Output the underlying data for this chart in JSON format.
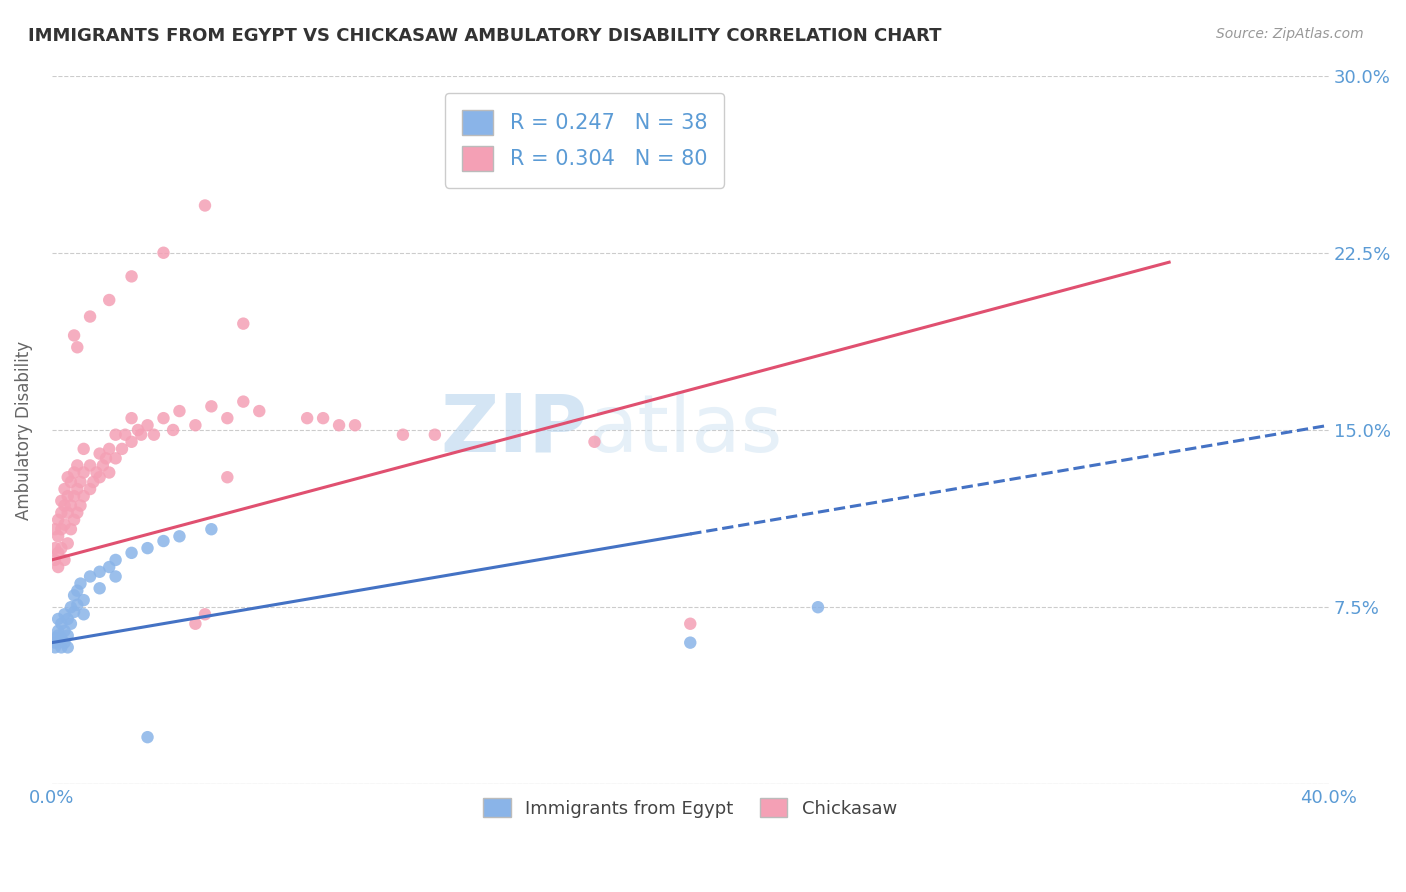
{
  "title": "IMMIGRANTS FROM EGYPT VS CHICKASAW AMBULATORY DISABILITY CORRELATION CHART",
  "source": "Source: ZipAtlas.com",
  "ylabel": "Ambulatory Disability",
  "xlim": [
    0.0,
    0.4
  ],
  "ylim": [
    0.0,
    0.3
  ],
  "xticks": [
    0.0,
    0.05,
    0.1,
    0.15,
    0.2,
    0.25,
    0.3,
    0.35,
    0.4
  ],
  "xticklabels": [
    "0.0%",
    "",
    "",
    "",
    "",
    "",
    "",
    "",
    "40.0%"
  ],
  "yticks": [
    0.0,
    0.075,
    0.15,
    0.225,
    0.3
  ],
  "yticklabels_right": [
    "",
    "7.5%",
    "15.0%",
    "22.5%",
    "30.0%"
  ],
  "legend_labels": [
    "Immigrants from Egypt",
    "Chickasaw"
  ],
  "legend_R": [
    0.247,
    0.304
  ],
  "legend_N": [
    38,
    80
  ],
  "blue_color": "#8ab4e8",
  "pink_color": "#f4a0b5",
  "trend_blue_color": "#4472c4",
  "trend_pink_color": "#e05070",
  "grid_color": "#cccccc",
  "axis_color": "#5b9bd5",
  "title_color": "#333333",
  "blue_trend_solid_end": 0.2,
  "blue_trend_dashed_start": 0.2,
  "blue_trend_intercept": 0.06,
  "blue_trend_slope": 0.23,
  "pink_trend_intercept": 0.095,
  "pink_trend_slope": 0.36,
  "blue_dots": [
    [
      0.001,
      0.062
    ],
    [
      0.001,
      0.06
    ],
    [
      0.001,
      0.058
    ],
    [
      0.002,
      0.065
    ],
    [
      0.002,
      0.063
    ],
    [
      0.002,
      0.07
    ],
    [
      0.003,
      0.068
    ],
    [
      0.003,
      0.062
    ],
    [
      0.003,
      0.058
    ],
    [
      0.004,
      0.072
    ],
    [
      0.004,
      0.065
    ],
    [
      0.004,
      0.06
    ],
    [
      0.005,
      0.07
    ],
    [
      0.005,
      0.063
    ],
    [
      0.005,
      0.058
    ],
    [
      0.006,
      0.075
    ],
    [
      0.006,
      0.068
    ],
    [
      0.007,
      0.08
    ],
    [
      0.007,
      0.073
    ],
    [
      0.008,
      0.082
    ],
    [
      0.008,
      0.076
    ],
    [
      0.009,
      0.085
    ],
    [
      0.01,
      0.078
    ],
    [
      0.01,
      0.072
    ],
    [
      0.012,
      0.088
    ],
    [
      0.015,
      0.09
    ],
    [
      0.015,
      0.083
    ],
    [
      0.018,
      0.092
    ],
    [
      0.02,
      0.095
    ],
    [
      0.02,
      0.088
    ],
    [
      0.025,
      0.098
    ],
    [
      0.03,
      0.1
    ],
    [
      0.035,
      0.103
    ],
    [
      0.04,
      0.105
    ],
    [
      0.05,
      0.108
    ],
    [
      0.2,
      0.06
    ],
    [
      0.24,
      0.075
    ],
    [
      0.03,
      0.02
    ]
  ],
  "pink_dots": [
    [
      0.001,
      0.1
    ],
    [
      0.001,
      0.095
    ],
    [
      0.001,
      0.108
    ],
    [
      0.002,
      0.092
    ],
    [
      0.002,
      0.105
    ],
    [
      0.002,
      0.112
    ],
    [
      0.002,
      0.098
    ],
    [
      0.003,
      0.115
    ],
    [
      0.003,
      0.108
    ],
    [
      0.003,
      0.1
    ],
    [
      0.003,
      0.12
    ],
    [
      0.004,
      0.095
    ],
    [
      0.004,
      0.11
    ],
    [
      0.004,
      0.118
    ],
    [
      0.004,
      0.125
    ],
    [
      0.005,
      0.102
    ],
    [
      0.005,
      0.115
    ],
    [
      0.005,
      0.122
    ],
    [
      0.005,
      0.13
    ],
    [
      0.006,
      0.108
    ],
    [
      0.006,
      0.118
    ],
    [
      0.006,
      0.128
    ],
    [
      0.007,
      0.112
    ],
    [
      0.007,
      0.122
    ],
    [
      0.007,
      0.132
    ],
    [
      0.008,
      0.115
    ],
    [
      0.008,
      0.125
    ],
    [
      0.008,
      0.135
    ],
    [
      0.009,
      0.118
    ],
    [
      0.009,
      0.128
    ],
    [
      0.01,
      0.122
    ],
    [
      0.01,
      0.132
    ],
    [
      0.01,
      0.142
    ],
    [
      0.012,
      0.125
    ],
    [
      0.012,
      0.135
    ],
    [
      0.013,
      0.128
    ],
    [
      0.014,
      0.132
    ],
    [
      0.015,
      0.13
    ],
    [
      0.015,
      0.14
    ],
    [
      0.016,
      0.135
    ],
    [
      0.017,
      0.138
    ],
    [
      0.018,
      0.132
    ],
    [
      0.018,
      0.142
    ],
    [
      0.02,
      0.138
    ],
    [
      0.02,
      0.148
    ],
    [
      0.022,
      0.142
    ],
    [
      0.023,
      0.148
    ],
    [
      0.025,
      0.145
    ],
    [
      0.025,
      0.155
    ],
    [
      0.027,
      0.15
    ],
    [
      0.028,
      0.148
    ],
    [
      0.03,
      0.152
    ],
    [
      0.032,
      0.148
    ],
    [
      0.035,
      0.155
    ],
    [
      0.038,
      0.15
    ],
    [
      0.04,
      0.158
    ],
    [
      0.045,
      0.152
    ],
    [
      0.05,
      0.16
    ],
    [
      0.055,
      0.155
    ],
    [
      0.06,
      0.162
    ],
    [
      0.065,
      0.158
    ],
    [
      0.007,
      0.19
    ],
    [
      0.008,
      0.185
    ],
    [
      0.012,
      0.198
    ],
    [
      0.018,
      0.205
    ],
    [
      0.025,
      0.215
    ],
    [
      0.035,
      0.225
    ],
    [
      0.048,
      0.245
    ],
    [
      0.06,
      0.195
    ],
    [
      0.085,
      0.155
    ],
    [
      0.095,
      0.152
    ],
    [
      0.12,
      0.148
    ],
    [
      0.17,
      0.145
    ],
    [
      0.2,
      0.068
    ],
    [
      0.045,
      0.068
    ],
    [
      0.048,
      0.072
    ],
    [
      0.055,
      0.13
    ],
    [
      0.08,
      0.155
    ],
    [
      0.09,
      0.152
    ],
    [
      0.11,
      0.148
    ]
  ]
}
